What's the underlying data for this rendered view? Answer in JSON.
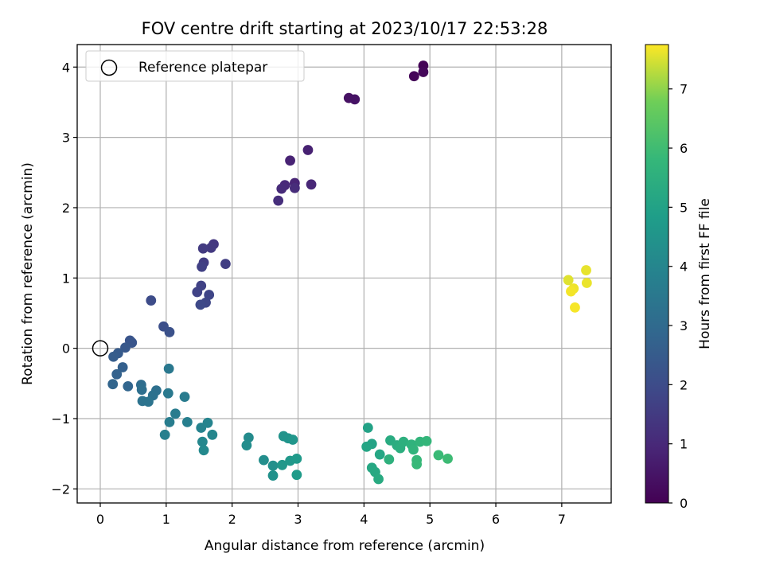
{
  "chart_data": {
    "type": "scatter",
    "title": "FOV centre drift starting at 2023/10/17 22:53:28",
    "xlabel": "Angular distance from reference (arcmin)",
    "ylabel": "Rotation from reference (arcmin)",
    "xlim": [
      -0.35,
      7.75
    ],
    "ylim": [
      -2.2,
      4.32
    ],
    "xticks": [
      0,
      1,
      2,
      3,
      4,
      5,
      6,
      7
    ],
    "yticks": [
      -2,
      -1,
      0,
      1,
      2,
      3,
      4
    ],
    "grid": true,
    "legend": {
      "placement": "top-left",
      "entries": [
        "Reference platepar"
      ]
    },
    "reference_point": {
      "x": 0,
      "y": 0
    },
    "colorbar": {
      "label": "Hours from first FF file",
      "range": [
        0,
        7.75
      ],
      "ticks": [
        0,
        1,
        2,
        3,
        4,
        5,
        6,
        7
      ],
      "colormap": "viridis"
    },
    "points": [
      {
        "x": 4.9,
        "y": 4.02,
        "c": 0.05
      },
      {
        "x": 4.76,
        "y": 3.87,
        "c": 0.1
      },
      {
        "x": 4.9,
        "y": 3.93,
        "c": 0.15
      },
      {
        "x": 3.77,
        "y": 3.56,
        "c": 0.4
      },
      {
        "x": 3.86,
        "y": 3.54,
        "c": 0.45
      },
      {
        "x": 3.15,
        "y": 2.82,
        "c": 0.8
      },
      {
        "x": 2.88,
        "y": 2.67,
        "c": 0.85
      },
      {
        "x": 2.95,
        "y": 2.35,
        "c": 0.9
      },
      {
        "x": 3.2,
        "y": 2.33,
        "c": 0.95
      },
      {
        "x": 2.8,
        "y": 2.32,
        "c": 1.0
      },
      {
        "x": 2.75,
        "y": 2.27,
        "c": 1.05
      },
      {
        "x": 2.95,
        "y": 2.28,
        "c": 1.1
      },
      {
        "x": 2.7,
        "y": 2.1,
        "c": 1.15
      },
      {
        "x": 1.72,
        "y": 1.48,
        "c": 1.4
      },
      {
        "x": 1.68,
        "y": 1.43,
        "c": 1.45
      },
      {
        "x": 1.56,
        "y": 1.42,
        "c": 1.5
      },
      {
        "x": 1.57,
        "y": 1.22,
        "c": 1.55
      },
      {
        "x": 1.9,
        "y": 1.2,
        "c": 1.6
      },
      {
        "x": 1.54,
        "y": 1.16,
        "c": 1.65
      },
      {
        "x": 1.53,
        "y": 0.89,
        "c": 1.7
      },
      {
        "x": 1.47,
        "y": 0.8,
        "c": 1.75
      },
      {
        "x": 1.65,
        "y": 0.76,
        "c": 1.8
      },
      {
        "x": 1.6,
        "y": 0.65,
        "c": 1.85
      },
      {
        "x": 1.52,
        "y": 0.62,
        "c": 1.9
      },
      {
        "x": 0.77,
        "y": 0.68,
        "c": 2.0
      },
      {
        "x": 0.96,
        "y": 0.31,
        "c": 2.1
      },
      {
        "x": 1.05,
        "y": 0.23,
        "c": 2.15
      },
      {
        "x": 0.45,
        "y": 0.11,
        "c": 2.25
      },
      {
        "x": 0.48,
        "y": 0.08,
        "c": 2.3
      },
      {
        "x": 0.38,
        "y": 0.01,
        "c": 2.4
      },
      {
        "x": 0.27,
        "y": -0.07,
        "c": 2.5
      },
      {
        "x": 0.2,
        "y": -0.12,
        "c": 2.55
      },
      {
        "x": 0.34,
        "y": -0.27,
        "c": 2.65
      },
      {
        "x": 0.25,
        "y": -0.37,
        "c": 2.7
      },
      {
        "x": 0.19,
        "y": -0.51,
        "c": 2.8
      },
      {
        "x": 0.42,
        "y": -0.54,
        "c": 2.85
      },
      {
        "x": 0.62,
        "y": -0.52,
        "c": 3.1
      },
      {
        "x": 0.63,
        "y": -0.59,
        "c": 3.15
      },
      {
        "x": 0.85,
        "y": -0.6,
        "c": 3.2
      },
      {
        "x": 0.8,
        "y": -0.67,
        "c": 3.25
      },
      {
        "x": 0.64,
        "y": -0.75,
        "c": 3.3
      },
      {
        "x": 0.73,
        "y": -0.76,
        "c": 3.35
      },
      {
        "x": 1.04,
        "y": -0.29,
        "c": 3.5
      },
      {
        "x": 1.03,
        "y": -0.64,
        "c": 3.55
      },
      {
        "x": 1.28,
        "y": -0.69,
        "c": 3.6
      },
      {
        "x": 1.14,
        "y": -0.93,
        "c": 3.65
      },
      {
        "x": 1.05,
        "y": -1.05,
        "c": 3.7
      },
      {
        "x": 1.32,
        "y": -1.05,
        "c": 3.75
      },
      {
        "x": 0.98,
        "y": -1.23,
        "c": 3.8
      },
      {
        "x": 1.53,
        "y": -1.13,
        "c": 3.9
      },
      {
        "x": 1.63,
        "y": -1.06,
        "c": 3.95
      },
      {
        "x": 1.7,
        "y": -1.23,
        "c": 4.0
      },
      {
        "x": 1.55,
        "y": -1.33,
        "c": 4.05
      },
      {
        "x": 1.57,
        "y": -1.45,
        "c": 4.1
      },
      {
        "x": 2.25,
        "y": -1.27,
        "c": 4.2
      },
      {
        "x": 2.22,
        "y": -1.38,
        "c": 4.25
      },
      {
        "x": 2.48,
        "y": -1.59,
        "c": 4.3
      },
      {
        "x": 2.62,
        "y": -1.67,
        "c": 4.35
      },
      {
        "x": 2.62,
        "y": -1.81,
        "c": 4.4
      },
      {
        "x": 2.78,
        "y": -1.25,
        "c": 4.45
      },
      {
        "x": 2.85,
        "y": -1.28,
        "c": 4.5
      },
      {
        "x": 2.92,
        "y": -1.3,
        "c": 4.55
      },
      {
        "x": 2.76,
        "y": -1.66,
        "c": 4.6
      },
      {
        "x": 2.88,
        "y": -1.6,
        "c": 4.65
      },
      {
        "x": 2.98,
        "y": -1.57,
        "c": 4.7
      },
      {
        "x": 2.98,
        "y": -1.8,
        "c": 4.75
      },
      {
        "x": 4.06,
        "y": -1.13,
        "c": 5.0
      },
      {
        "x": 4.12,
        "y": -1.36,
        "c": 5.05
      },
      {
        "x": 4.04,
        "y": -1.4,
        "c": 5.1
      },
      {
        "x": 4.24,
        "y": -1.51,
        "c": 5.15
      },
      {
        "x": 4.12,
        "y": -1.7,
        "c": 5.2
      },
      {
        "x": 4.17,
        "y": -1.76,
        "c": 5.25
      },
      {
        "x": 4.22,
        "y": -1.86,
        "c": 5.3
      },
      {
        "x": 4.4,
        "y": -1.31,
        "c": 5.35
      },
      {
        "x": 4.5,
        "y": -1.38,
        "c": 5.4
      },
      {
        "x": 4.55,
        "y": -1.42,
        "c": 5.45
      },
      {
        "x": 4.6,
        "y": -1.33,
        "c": 5.5
      },
      {
        "x": 4.38,
        "y": -1.58,
        "c": 5.55
      },
      {
        "x": 4.72,
        "y": -1.37,
        "c": 5.6
      },
      {
        "x": 4.75,
        "y": -1.44,
        "c": 5.65
      },
      {
        "x": 4.85,
        "y": -1.33,
        "c": 5.7
      },
      {
        "x": 4.95,
        "y": -1.32,
        "c": 5.75
      },
      {
        "x": 4.8,
        "y": -1.59,
        "c": 5.8
      },
      {
        "x": 4.8,
        "y": -1.65,
        "c": 5.85
      },
      {
        "x": 5.13,
        "y": -1.52,
        "c": 5.9
      },
      {
        "x": 5.27,
        "y": -1.57,
        "c": 5.95
      },
      {
        "x": 7.1,
        "y": 0.97,
        "c": 7.55
      },
      {
        "x": 7.37,
        "y": 1.11,
        "c": 7.6
      },
      {
        "x": 7.38,
        "y": 0.93,
        "c": 7.62
      },
      {
        "x": 7.18,
        "y": 0.85,
        "c": 7.65
      },
      {
        "x": 7.14,
        "y": 0.81,
        "c": 7.68
      },
      {
        "x": 7.2,
        "y": 0.58,
        "c": 7.7
      }
    ]
  }
}
